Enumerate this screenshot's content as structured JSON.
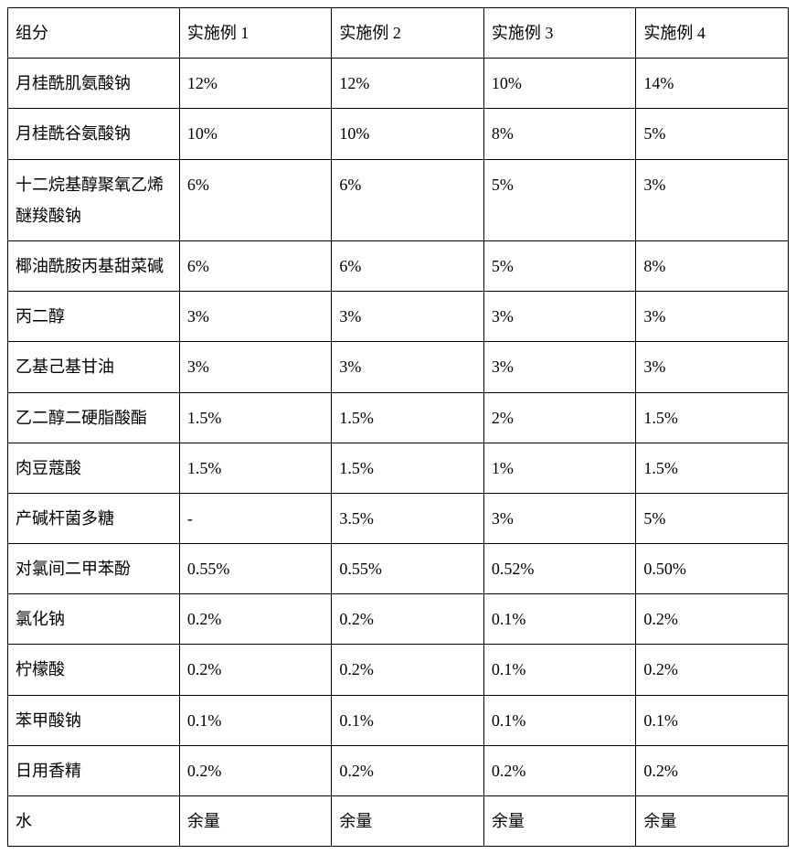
{
  "table": {
    "columns": [
      "组分",
      "实施例 1",
      "实施例 2",
      "实施例 3",
      "实施例 4"
    ],
    "rows": [
      [
        "月桂酰肌氨酸钠",
        "12%",
        "12%",
        "10%",
        "14%"
      ],
      [
        "月桂酰谷氨酸钠",
        "10%",
        "10%",
        "8%",
        "5%"
      ],
      [
        "十二烷基醇聚氧乙烯醚羧酸钠",
        "6%",
        "6%",
        "5%",
        "3%"
      ],
      [
        "椰油酰胺丙基甜菜碱",
        "6%",
        "6%",
        "5%",
        "8%"
      ],
      [
        "丙二醇",
        "3%",
        "3%",
        "3%",
        "3%"
      ],
      [
        "乙基己基甘油",
        "3%",
        "3%",
        "3%",
        "3%"
      ],
      [
        "乙二醇二硬脂酸酯",
        "1.5%",
        "1.5%",
        "2%",
        "1.5%"
      ],
      [
        "肉豆蔻酸",
        "1.5%",
        "1.5%",
        "1%",
        "1.5%"
      ],
      [
        "产碱杆菌多糖",
        "-",
        "3.5%",
        "3%",
        "5%"
      ],
      [
        "对氯间二甲苯酚",
        "0.55%",
        "0.55%",
        "0.52%",
        "0.50%"
      ],
      [
        "氯化钠",
        "0.2%",
        "0.2%",
        "0.1%",
        "0.2%"
      ],
      [
        "柠檬酸",
        "0.2%",
        "0.2%",
        "0.1%",
        "0.2%"
      ],
      [
        "苯甲酸钠",
        "0.1%",
        "0.1%",
        "0.1%",
        "0.1%"
      ],
      [
        "日用香精",
        "0.2%",
        "0.2%",
        "0.2%",
        "0.2%"
      ],
      [
        "水",
        "余量",
        "余量",
        "余量",
        "余量"
      ]
    ],
    "border_color": "#000000",
    "background_color": "#ffffff",
    "font_size": 18,
    "font_family": "SimSun"
  }
}
